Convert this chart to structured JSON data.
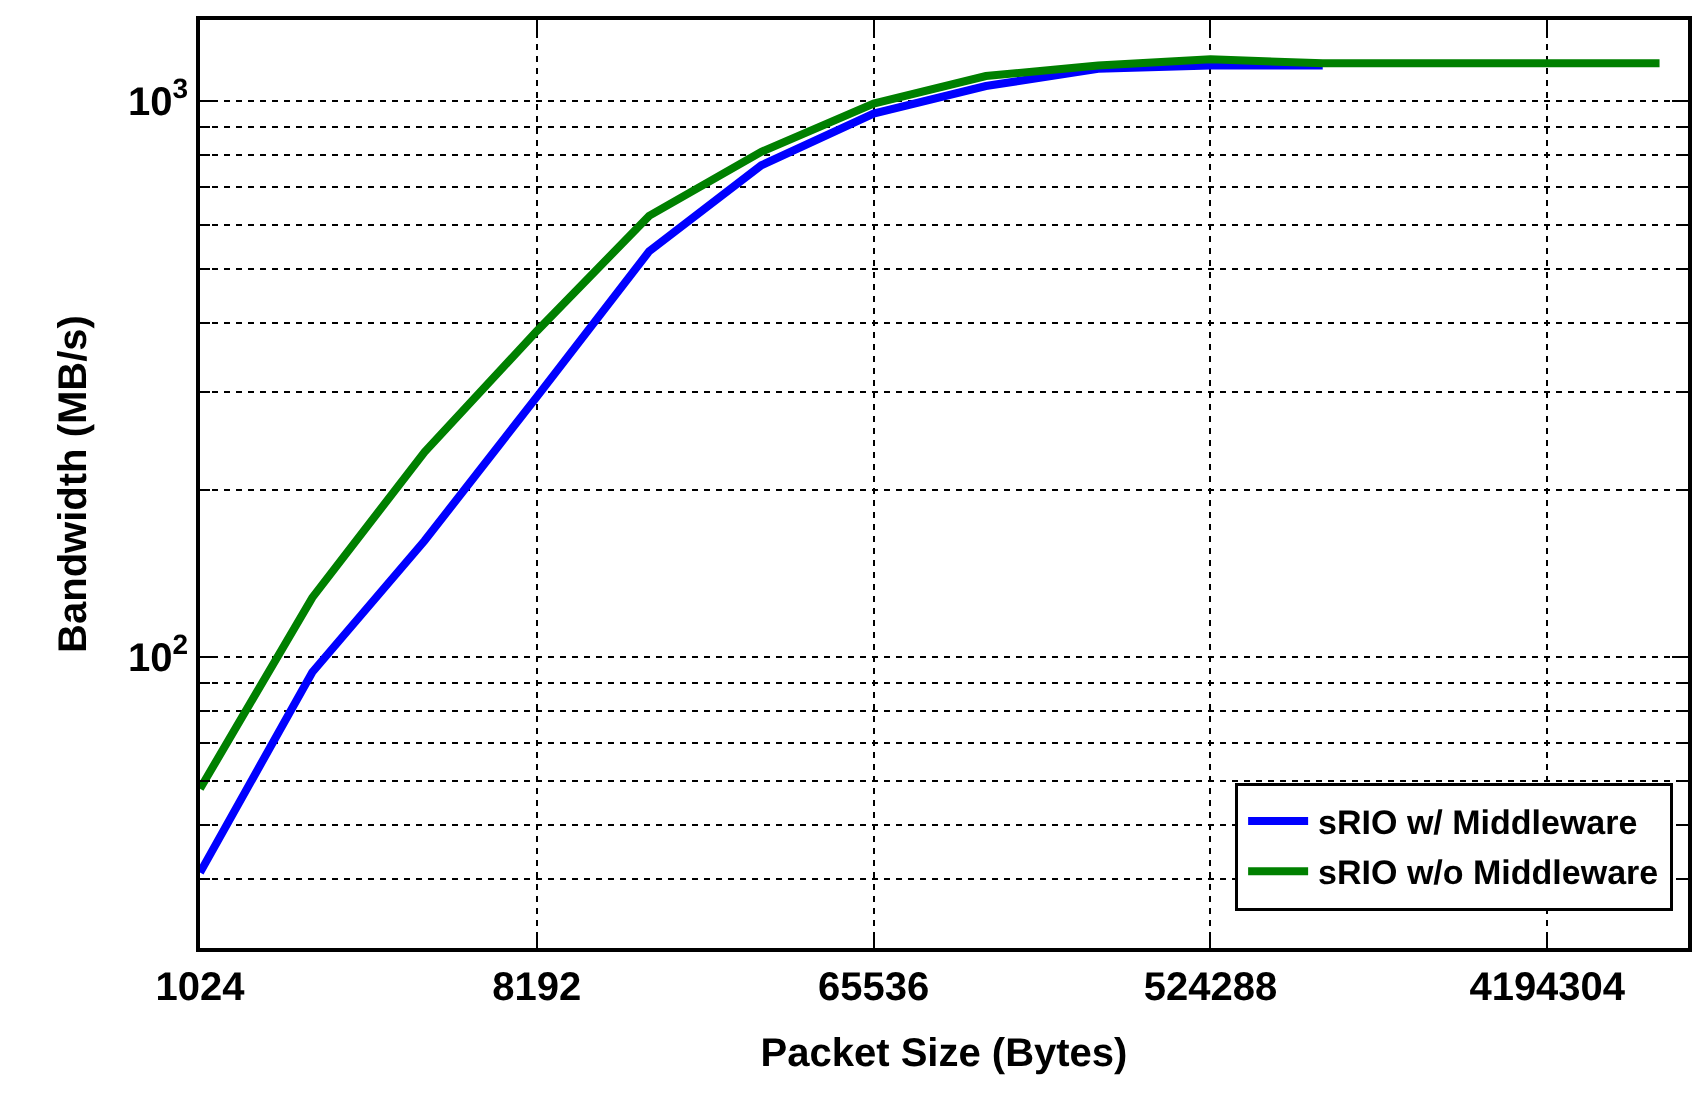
{
  "chart_data": {
    "type": "line",
    "xlabel": "Packet Size (Bytes)",
    "ylabel": "Bandwidth (MB/s)",
    "log": "xy",
    "grid": true,
    "legend": "bottom right",
    "line_style": "solid",
    "marker": "none",
    "x": [
      1024,
      2048,
      4096,
      8192,
      16384,
      32768,
      65536,
      131072,
      262144,
      524288,
      1048576,
      2097152,
      4194304,
      8388608
    ],
    "xlim": [
      1024,
      10000000
    ],
    "xticks": [
      1024,
      8192,
      65536,
      524288,
      4194304
    ],
    "ylim": [
      30,
      1400
    ],
    "yticks": [
      {
        "value": 100,
        "label": "10$^{2}$"
      },
      {
        "value": 1000,
        "label": "10$^{3}$"
      }
    ],
    "series": [
      {
        "name": "sRIO w/ Middleware",
        "color": "#0000ff",
        "values": [
          41,
          94,
          162,
          294,
          537,
          767,
          950,
          1065,
          1144,
          1160,
          1160,
          null,
          null,
          null
        ]
      },
      {
        "name": "sRIO w/o Middleware",
        "color": "#008000",
        "values": [
          58,
          128,
          234,
          386,
          622,
          811,
          990,
          1110,
          1160,
          1190,
          1170,
          1170,
          1170,
          1170
        ]
      }
    ]
  }
}
